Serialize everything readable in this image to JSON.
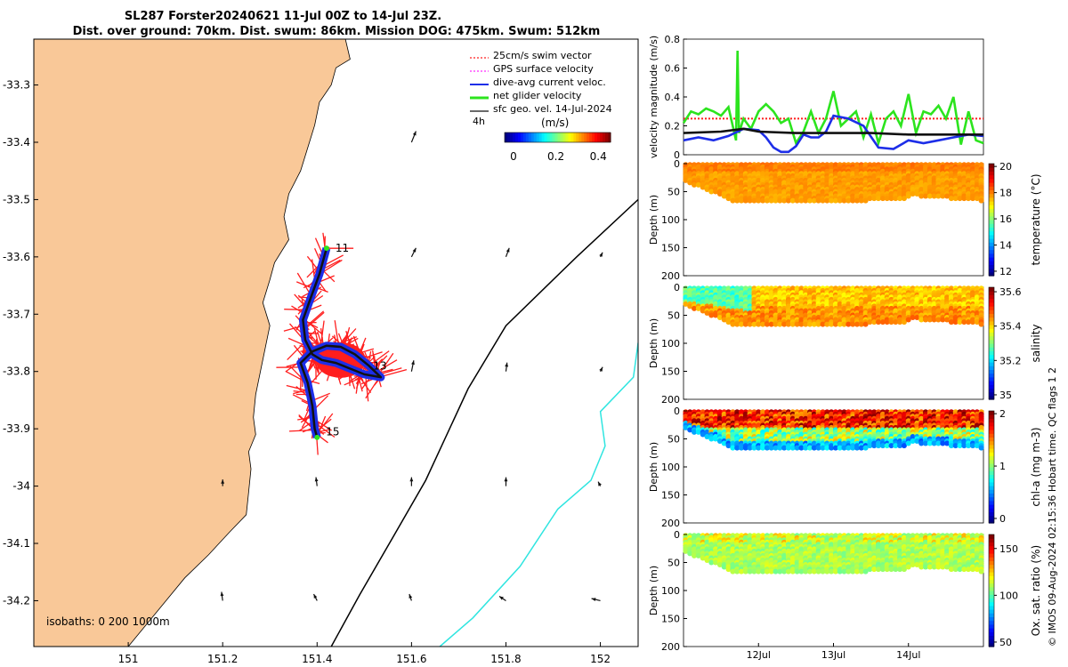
{
  "title": {
    "line1": "SL287 Forster20240621 11-Jul 00Z to 14-Jul 23Z.",
    "line2": "Dist. over ground: 70km. Dist. swum: 86km. Mission DOG: 475km. Swum: 512km"
  },
  "credit": "© IMOS 09-Aug-2024 02:15:36 Hobart time. QC flags 1  2",
  "colors": {
    "land": "#f9c898",
    "swim_vector": "#ff1e1e",
    "gps_velocity": "#ff2bff",
    "dive_current": "#1d2ee8",
    "net_glider": "#2ce41e",
    "geo_velocity": "#111111",
    "isobath_1000": "#2fe5e0",
    "isobath_200": "#000000"
  },
  "chart_data": [
    {
      "type": "map",
      "name": "glider-track-map",
      "xlim": [
        150.8,
        152.08
      ],
      "ylim": [
        -34.28,
        -33.22
      ],
      "x_ticks": [
        "151",
        "151.2",
        "151.4",
        "151.6",
        "151.8",
        "152"
      ],
      "y_ticks": [
        "-33.3",
        "-33.4",
        "-33.5",
        "-33.6",
        "-33.7",
        "-33.8",
        "-33.9",
        "-34",
        "-34.1",
        "-34.2"
      ],
      "x_tick_values": [
        151,
        151.2,
        151.4,
        151.6,
        151.8,
        152
      ],
      "y_tick_values": [
        -33.3,
        -33.4,
        -33.5,
        -33.6,
        -33.7,
        -33.8,
        -33.9,
        -34.0,
        -34.1,
        -34.2
      ],
      "legend": {
        "placement": "top-right",
        "entries": [
          "25cm/s swim vector",
          "GPS surface velocity",
          "dive-avg current veloc.",
          "net glider velocity",
          "sfc geo. vel. 14-Jul-2024"
        ],
        "duration_label": "4h"
      },
      "colorbar": {
        "label": "(m/s)",
        "ticks": [
          "0",
          "0.2",
          "0.4"
        ],
        "tick_values": [
          0,
          0.2,
          0.4
        ],
        "range": [
          0,
          0.5
        ]
      },
      "isobaths_label": "isobaths: 0   200  1000m",
      "day_labels": [
        {
          "label": "11",
          "lon": 151.42,
          "lat": -33.585
        },
        {
          "label": "13",
          "lon": 151.5,
          "lat": -33.79
        },
        {
          "label": "15",
          "lon": 151.4,
          "lat": -33.905
        }
      ],
      "track": [
        [
          151.42,
          -33.585
        ],
        [
          151.405,
          -33.63
        ],
        [
          151.385,
          -33.675
        ],
        [
          151.37,
          -33.71
        ],
        [
          151.375,
          -33.745
        ],
        [
          151.39,
          -33.77
        ],
        [
          151.41,
          -33.78
        ],
        [
          151.44,
          -33.785
        ],
        [
          151.47,
          -33.795
        ],
        [
          151.5,
          -33.805
        ],
        [
          151.535,
          -33.81
        ],
        [
          151.51,
          -33.79
        ],
        [
          151.48,
          -33.77
        ],
        [
          151.45,
          -33.757
        ],
        [
          151.42,
          -33.755
        ],
        [
          151.39,
          -33.765
        ],
        [
          151.365,
          -33.785
        ],
        [
          151.38,
          -33.82
        ],
        [
          151.39,
          -33.86
        ],
        [
          151.395,
          -33.9
        ],
        [
          151.4,
          -33.915
        ]
      ],
      "coastline": [
        [
          150.8,
          -33.22
        ],
        [
          151.46,
          -33.22
        ],
        [
          151.47,
          -33.255
        ],
        [
          151.44,
          -33.27
        ],
        [
          151.43,
          -33.3
        ],
        [
          151.405,
          -33.33
        ],
        [
          151.395,
          -33.37
        ],
        [
          151.38,
          -33.41
        ],
        [
          151.365,
          -33.45
        ],
        [
          151.34,
          -33.49
        ],
        [
          151.33,
          -33.53
        ],
        [
          151.34,
          -33.57
        ],
        [
          151.31,
          -33.61
        ],
        [
          151.3,
          -33.64
        ],
        [
          151.285,
          -33.68
        ],
        [
          151.3,
          -33.72
        ],
        [
          151.29,
          -33.76
        ],
        [
          151.28,
          -33.8
        ],
        [
          151.27,
          -33.84
        ],
        [
          151.265,
          -33.88
        ],
        [
          151.27,
          -33.91
        ],
        [
          151.255,
          -33.94
        ],
        [
          151.26,
          -33.97
        ],
        [
          151.255,
          -34.01
        ],
        [
          151.25,
          -34.05
        ],
        [
          151.215,
          -34.08
        ],
        [
          151.17,
          -34.12
        ],
        [
          151.12,
          -34.16
        ],
        [
          151.08,
          -34.2
        ],
        [
          151.04,
          -34.24
        ],
        [
          151.0,
          -34.28
        ],
        [
          150.8,
          -34.28
        ]
      ],
      "isobath_200": [
        [
          152.08,
          -33.5
        ],
        [
          151.95,
          -33.6
        ],
        [
          151.8,
          -33.72
        ],
        [
          151.72,
          -33.83
        ],
        [
          151.63,
          -33.99
        ],
        [
          151.56,
          -34.09
        ],
        [
          151.49,
          -34.19
        ],
        [
          151.43,
          -34.28
        ]
      ],
      "isobath_1000": [
        [
          152.08,
          -33.75
        ],
        [
          152.07,
          -33.81
        ],
        [
          152.0,
          -33.87
        ],
        [
          152.01,
          -33.93
        ],
        [
          151.98,
          -33.99
        ],
        [
          151.91,
          -34.04
        ],
        [
          151.83,
          -34.14
        ],
        [
          151.73,
          -34.23
        ],
        [
          151.66,
          -34.28
        ]
      ],
      "geo_vectors": [
        [
          151.6,
          -33.4,
          0.02,
          0.05
        ],
        [
          151.6,
          -33.6,
          0.02,
          0.04
        ],
        [
          151.8,
          -33.6,
          0.015,
          0.04
        ],
        [
          152.0,
          -33.6,
          0.01,
          0.02
        ],
        [
          151.6,
          -33.8,
          0.01,
          0.05
        ],
        [
          151.8,
          -33.8,
          0.005,
          0.04
        ],
        [
          152.0,
          -33.8,
          0.01,
          0.02
        ],
        [
          151.2,
          -34.0,
          0.0,
          0.03
        ],
        [
          151.4,
          -34.0,
          -0.005,
          0.04
        ],
        [
          151.6,
          -34.0,
          0.0,
          0.04
        ],
        [
          151.8,
          -34.0,
          0.0,
          0.04
        ],
        [
          152.0,
          -34.0,
          -0.01,
          0.02
        ],
        [
          151.2,
          -34.2,
          -0.005,
          0.04
        ],
        [
          151.4,
          -34.2,
          -0.015,
          0.03
        ],
        [
          151.6,
          -34.2,
          -0.01,
          0.03
        ],
        [
          151.8,
          -34.2,
          -0.03,
          0.02
        ],
        [
          152.0,
          -34.2,
          -0.04,
          0.01
        ]
      ]
    },
    {
      "type": "line",
      "name": "velocity-magnitude",
      "ylabel": "velocity magnitude (m/s)",
      "ylim": [
        0,
        0.8
      ],
      "y_ticks": [
        "0",
        "0.2",
        "0.4",
        "0.6",
        "0.8"
      ],
      "y_tick_values": [
        0,
        0.2,
        0.4,
        0.6,
        0.8
      ],
      "xlim_days": [
        11,
        15
      ],
      "series": [
        {
          "color": "#ff1e1e",
          "style": "dotted",
          "x": [
            11,
            15
          ],
          "y": [
            0.25,
            0.25
          ]
        },
        {
          "color": "#2ce41e",
          "x": [
            11.0,
            11.1,
            11.2,
            11.3,
            11.4,
            11.5,
            11.6,
            11.7,
            11.72,
            11.74,
            11.8,
            11.9,
            12.0,
            12.1,
            12.2,
            12.3,
            12.4,
            12.5,
            12.6,
            12.7,
            12.8,
            12.9,
            13.0,
            13.1,
            13.2,
            13.3,
            13.4,
            13.5,
            13.6,
            13.7,
            13.8,
            13.9,
            14.0,
            14.1,
            14.2,
            14.3,
            14.4,
            14.5,
            14.6,
            14.7,
            14.8,
            14.9,
            15.0
          ],
          "y": [
            0.22,
            0.3,
            0.28,
            0.32,
            0.3,
            0.27,
            0.33,
            0.1,
            0.72,
            0.15,
            0.25,
            0.18,
            0.3,
            0.35,
            0.3,
            0.22,
            0.25,
            0.08,
            0.16,
            0.3,
            0.15,
            0.25,
            0.44,
            0.2,
            0.25,
            0.3,
            0.12,
            0.28,
            0.08,
            0.25,
            0.3,
            0.2,
            0.42,
            0.15,
            0.3,
            0.28,
            0.34,
            0.25,
            0.4,
            0.07,
            0.3,
            0.1,
            0.08
          ]
        },
        {
          "color": "#1d2ee8",
          "x": [
            11.0,
            11.2,
            11.4,
            11.6,
            11.8,
            12.0,
            12.1,
            12.2,
            12.3,
            12.4,
            12.5,
            12.6,
            12.7,
            12.8,
            12.9,
            13.0,
            13.2,
            13.4,
            13.6,
            13.8,
            14.0,
            14.2,
            14.4,
            14.6,
            14.8,
            15.0
          ],
          "y": [
            0.1,
            0.12,
            0.1,
            0.13,
            0.18,
            0.17,
            0.12,
            0.05,
            0.02,
            0.02,
            0.06,
            0.14,
            0.12,
            0.12,
            0.16,
            0.27,
            0.25,
            0.2,
            0.05,
            0.04,
            0.1,
            0.08,
            0.1,
            0.12,
            0.14,
            0.13
          ]
        },
        {
          "color": "#111111",
          "x": [
            11.0,
            11.5,
            11.8,
            12.0,
            12.5,
            13.0,
            13.5,
            14.0,
            14.5,
            15.0
          ],
          "y": [
            0.15,
            0.16,
            0.18,
            0.16,
            0.15,
            0.15,
            0.15,
            0.14,
            0.14,
            0.14
          ]
        }
      ]
    },
    {
      "type": "heatmap",
      "name": "temperature-section",
      "colorbar_label": "temperature (°C)",
      "colorbar_ticks": [
        "12",
        "14",
        "16",
        "18",
        "20"
      ],
      "colorbar_tick_values": [
        12,
        14,
        16,
        18,
        20
      ],
      "ylabel": "Depth (m)",
      "y_ticks": [
        "0",
        "50",
        "100",
        "150",
        "200"
      ],
      "ylim": [
        0,
        200
      ],
      "bottom_depth_x": [
        11.0,
        11.7,
        12.0,
        13.0,
        13.9,
        14.0,
        15.0
      ],
      "bottom_depth_y": [
        30,
        68,
        66,
        66,
        62,
        55,
        65
      ]
    },
    {
      "type": "heatmap",
      "name": "salinity-section",
      "colorbar_label": "salinity",
      "colorbar_ticks": [
        "35",
        "35.2",
        "35.4",
        "35.6"
      ],
      "colorbar_tick_values": [
        35.0,
        35.2,
        35.4,
        35.6
      ],
      "ylabel": "Depth (m)",
      "y_ticks": [
        "0",
        "50",
        "100",
        "150",
        "200"
      ],
      "ylim": [
        0,
        200
      ]
    },
    {
      "type": "heatmap",
      "name": "chl-a-section",
      "colorbar_label": "chl-a (mg m-3)",
      "colorbar_ticks": [
        "0",
        "1",
        "2"
      ],
      "colorbar_tick_values": [
        0,
        1,
        2
      ],
      "ylabel": "Depth (m)",
      "y_ticks": [
        "0",
        "50",
        "100",
        "150",
        "200"
      ],
      "ylim": [
        0,
        200
      ]
    },
    {
      "type": "heatmap",
      "name": "oxygen-section",
      "colorbar_label": "Ox. sat. ratio (%)",
      "colorbar_ticks": [
        "50",
        "100",
        "150"
      ],
      "colorbar_tick_values": [
        50,
        100,
        150
      ],
      "ylabel": "Depth (m)",
      "y_ticks": [
        "0",
        "50",
        "100",
        "150",
        "200"
      ],
      "ylim": [
        0,
        200
      ],
      "x_ticks": [
        "12Jul",
        "13Jul",
        "14Jul"
      ],
      "x_tick_values": [
        12,
        13,
        14
      ]
    }
  ]
}
